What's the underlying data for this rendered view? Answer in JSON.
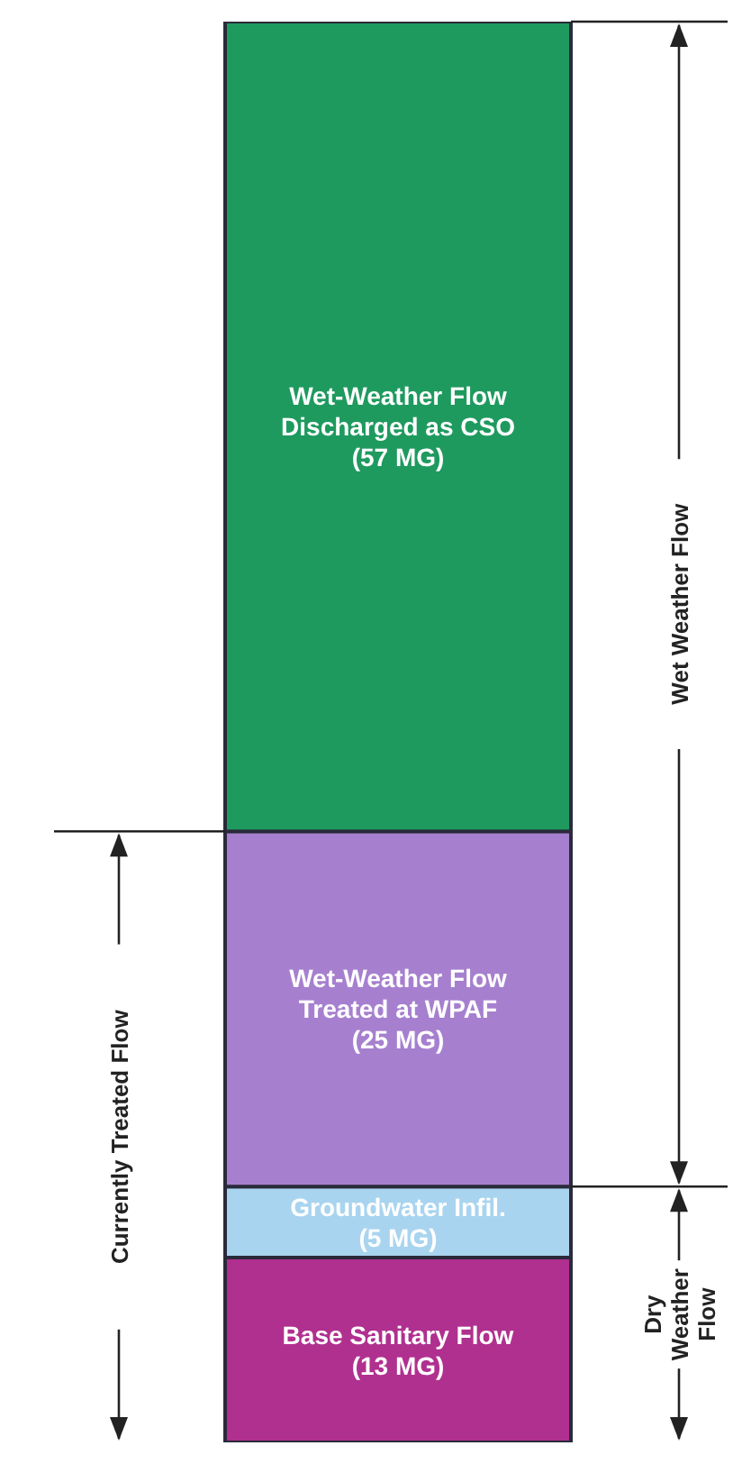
{
  "chart_data": {
    "type": "bar",
    "stacked": true,
    "categories": [
      null
    ],
    "series": [
      {
        "color": "#b0308f",
        "values": [
          13
        ],
        "value_labels": [
          "Base Sanitary Flow (13 MG)"
        ]
      },
      {
        "color": "#a9d4ef",
        "values": [
          5
        ],
        "value_labels": [
          "Groundwater Infil. (5 MG)"
        ]
      },
      {
        "color": "#a680cf",
        "values": [
          25
        ],
        "value_labels": [
          "Wet-Weather Flow Treated at WPAF (25 MG)"
        ]
      },
      {
        "color": "#1f9a5f",
        "values": [
          57
        ],
        "value_labels": [
          "Wet-Weather Flow Discharged as CSO (57 MG)"
        ]
      }
    ],
    "annotations": [
      "Currently Treated Flow",
      "Wet Weather Flow",
      "Dry Weather Flow"
    ]
  }
}
